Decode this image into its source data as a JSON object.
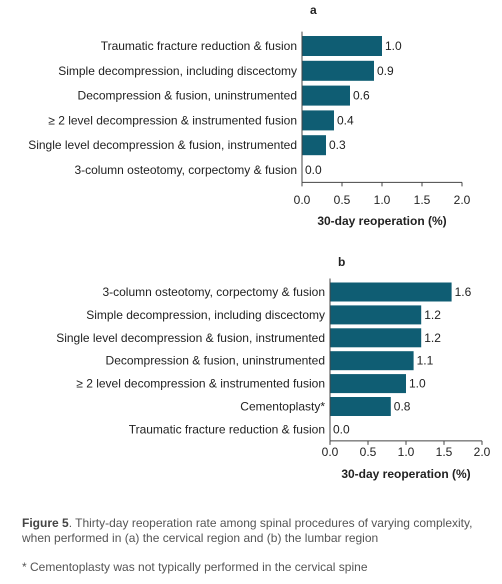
{
  "chart_data": [
    {
      "type": "bar",
      "orientation": "horizontal",
      "panel_label": "a",
      "categories": [
        "Traumatic fracture reduction & fusion",
        "Simple decompression, including discectomy",
        "Decompression & fusion, uninstrumented",
        "≥ 2 level decompression & instrumented fusion",
        "Single level decompression & fusion, instrumented",
        "3-column osteotomy, corpectomy & fusion"
      ],
      "values": [
        1.0,
        0.9,
        0.6,
        0.4,
        0.3,
        0.0
      ],
      "value_labels": [
        "1.0",
        "0.9",
        "0.6",
        "0.4",
        "0.3",
        "0.0"
      ],
      "xlabel": "30-day reoperation (%)",
      "xlim": [
        0,
        2.0
      ],
      "xticks": [
        "0.0",
        "0.5",
        "1.0",
        "1.5",
        "2.0"
      ],
      "grid": false,
      "color": "#0f5d73"
    },
    {
      "type": "bar",
      "orientation": "horizontal",
      "panel_label": "b",
      "categories": [
        "3-column osteotomy, corpectomy & fusion",
        "Simple decompression, including discectomy",
        "Single level decompression & fusion, instrumented",
        "Decompression & fusion, uninstrumented",
        "≥ 2 level decompression & instrumented fusion",
        "Cementoplasty*",
        "Traumatic fracture reduction & fusion"
      ],
      "values": [
        1.6,
        1.2,
        1.2,
        1.1,
        1.0,
        0.8,
        0.0
      ],
      "value_labels": [
        "1.6",
        "1.2",
        "1.2",
        "1.1",
        "1.0",
        "0.8",
        "0.0"
      ],
      "xlabel": "30-day reoperation (%)",
      "xlim": [
        0,
        2.0
      ],
      "xticks": [
        "0.0",
        "0.5",
        "1.0",
        "1.5",
        "2.0"
      ],
      "grid": false,
      "color": "#0f5d73"
    }
  ],
  "caption": {
    "figure_label": "Figure 5",
    "text": ". Thirty-day reoperation rate among spinal procedures of varying complexity, when performed in (a) the cervical region and (b) the lumbar region",
    "footnote": "* Cementoplasty was not typically performed in the cervical spine"
  }
}
